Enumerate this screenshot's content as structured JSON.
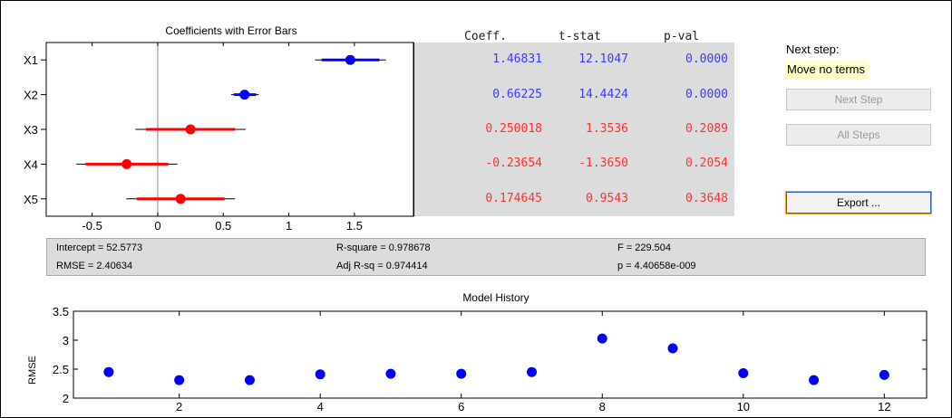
{
  "coef_plot": {
    "title": "Coefficients with Error Bars",
    "xlim": [
      -0.85,
      1.95
    ],
    "xticks": [
      -0.5,
      0,
      0.5,
      1,
      1.5
    ],
    "xtick_labels": [
      "-0.5",
      "0",
      "0.5",
      "1",
      "1.5"
    ],
    "in_color": "#0000ff",
    "out_color": "#ff0000",
    "terms": [
      {
        "label": "X1",
        "coef": 1.46831,
        "ci95": [
          1.2,
          1.74
        ],
        "ci90": [
          1.25,
          1.69
        ],
        "in": true
      },
      {
        "label": "X2",
        "coef": 0.66225,
        "ci95": [
          0.56,
          0.77
        ],
        "ci90": [
          0.58,
          0.75
        ],
        "in": true
      },
      {
        "label": "X3",
        "coef": 0.250018,
        "ci95": [
          -0.17,
          0.67
        ],
        "ci90": [
          -0.09,
          0.59
        ],
        "in": false
      },
      {
        "label": "X4",
        "coef": -0.23654,
        "ci95": [
          -0.62,
          0.15
        ],
        "ci90": [
          -0.55,
          0.08
        ],
        "in": false
      },
      {
        "label": "X5",
        "coef": 0.174645,
        "ci95": [
          -0.24,
          0.59
        ],
        "ci90": [
          -0.16,
          0.51
        ],
        "in": false
      }
    ]
  },
  "table": {
    "headers": [
      "Coeff.",
      "t-stat",
      "p-val"
    ],
    "rows": [
      {
        "coeff": "1.46831",
        "tstat": "12.1047",
        "pval": "0.0000",
        "in": true
      },
      {
        "coeff": "0.66225",
        "tstat": "14.4424",
        "pval": "0.0000",
        "in": true
      },
      {
        "coeff": "0.250018",
        "tstat": "1.3536",
        "pval": "0.2089",
        "in": false
      },
      {
        "coeff": "-0.23654",
        "tstat": "-1.3650",
        "pval": "0.2054",
        "in": false
      },
      {
        "coeff": "0.174645",
        "tstat": "0.9543",
        "pval": "0.3648",
        "in": false
      }
    ]
  },
  "panel": {
    "next_step_label": "Next step:",
    "next_step_value": "Move no terms",
    "next_step_button": "Next Step",
    "all_steps_button": "All Steps",
    "export_button": "Export ..."
  },
  "stats": {
    "intercept": "Intercept = 52.5773",
    "rmse": "RMSE = 2.40634",
    "rsquare": "R-square = 0.978678",
    "adj_rsq": "Adj R-sq = 0.974414",
    "f": "F = 229.504",
    "p": "p = 4.40658e-009"
  },
  "chart_data": {
    "type": "scatter",
    "title": "Model History",
    "xlabel": "",
    "ylabel": "RMSE",
    "xlim": [
      0.5,
      12.6
    ],
    "ylim": [
      2,
      3.5
    ],
    "xticks": [
      2,
      4,
      6,
      8,
      10,
      12
    ],
    "yticks": [
      2,
      2.5,
      3,
      3.5
    ],
    "point_color": "#0000ff",
    "x": [
      1,
      2,
      3,
      4,
      5,
      6,
      7,
      8,
      9,
      10,
      11,
      12
    ],
    "y": [
      2.45,
      2.31,
      2.31,
      2.41,
      2.42,
      2.42,
      2.45,
      3.03,
      2.86,
      2.43,
      2.31,
      2.4
    ]
  }
}
